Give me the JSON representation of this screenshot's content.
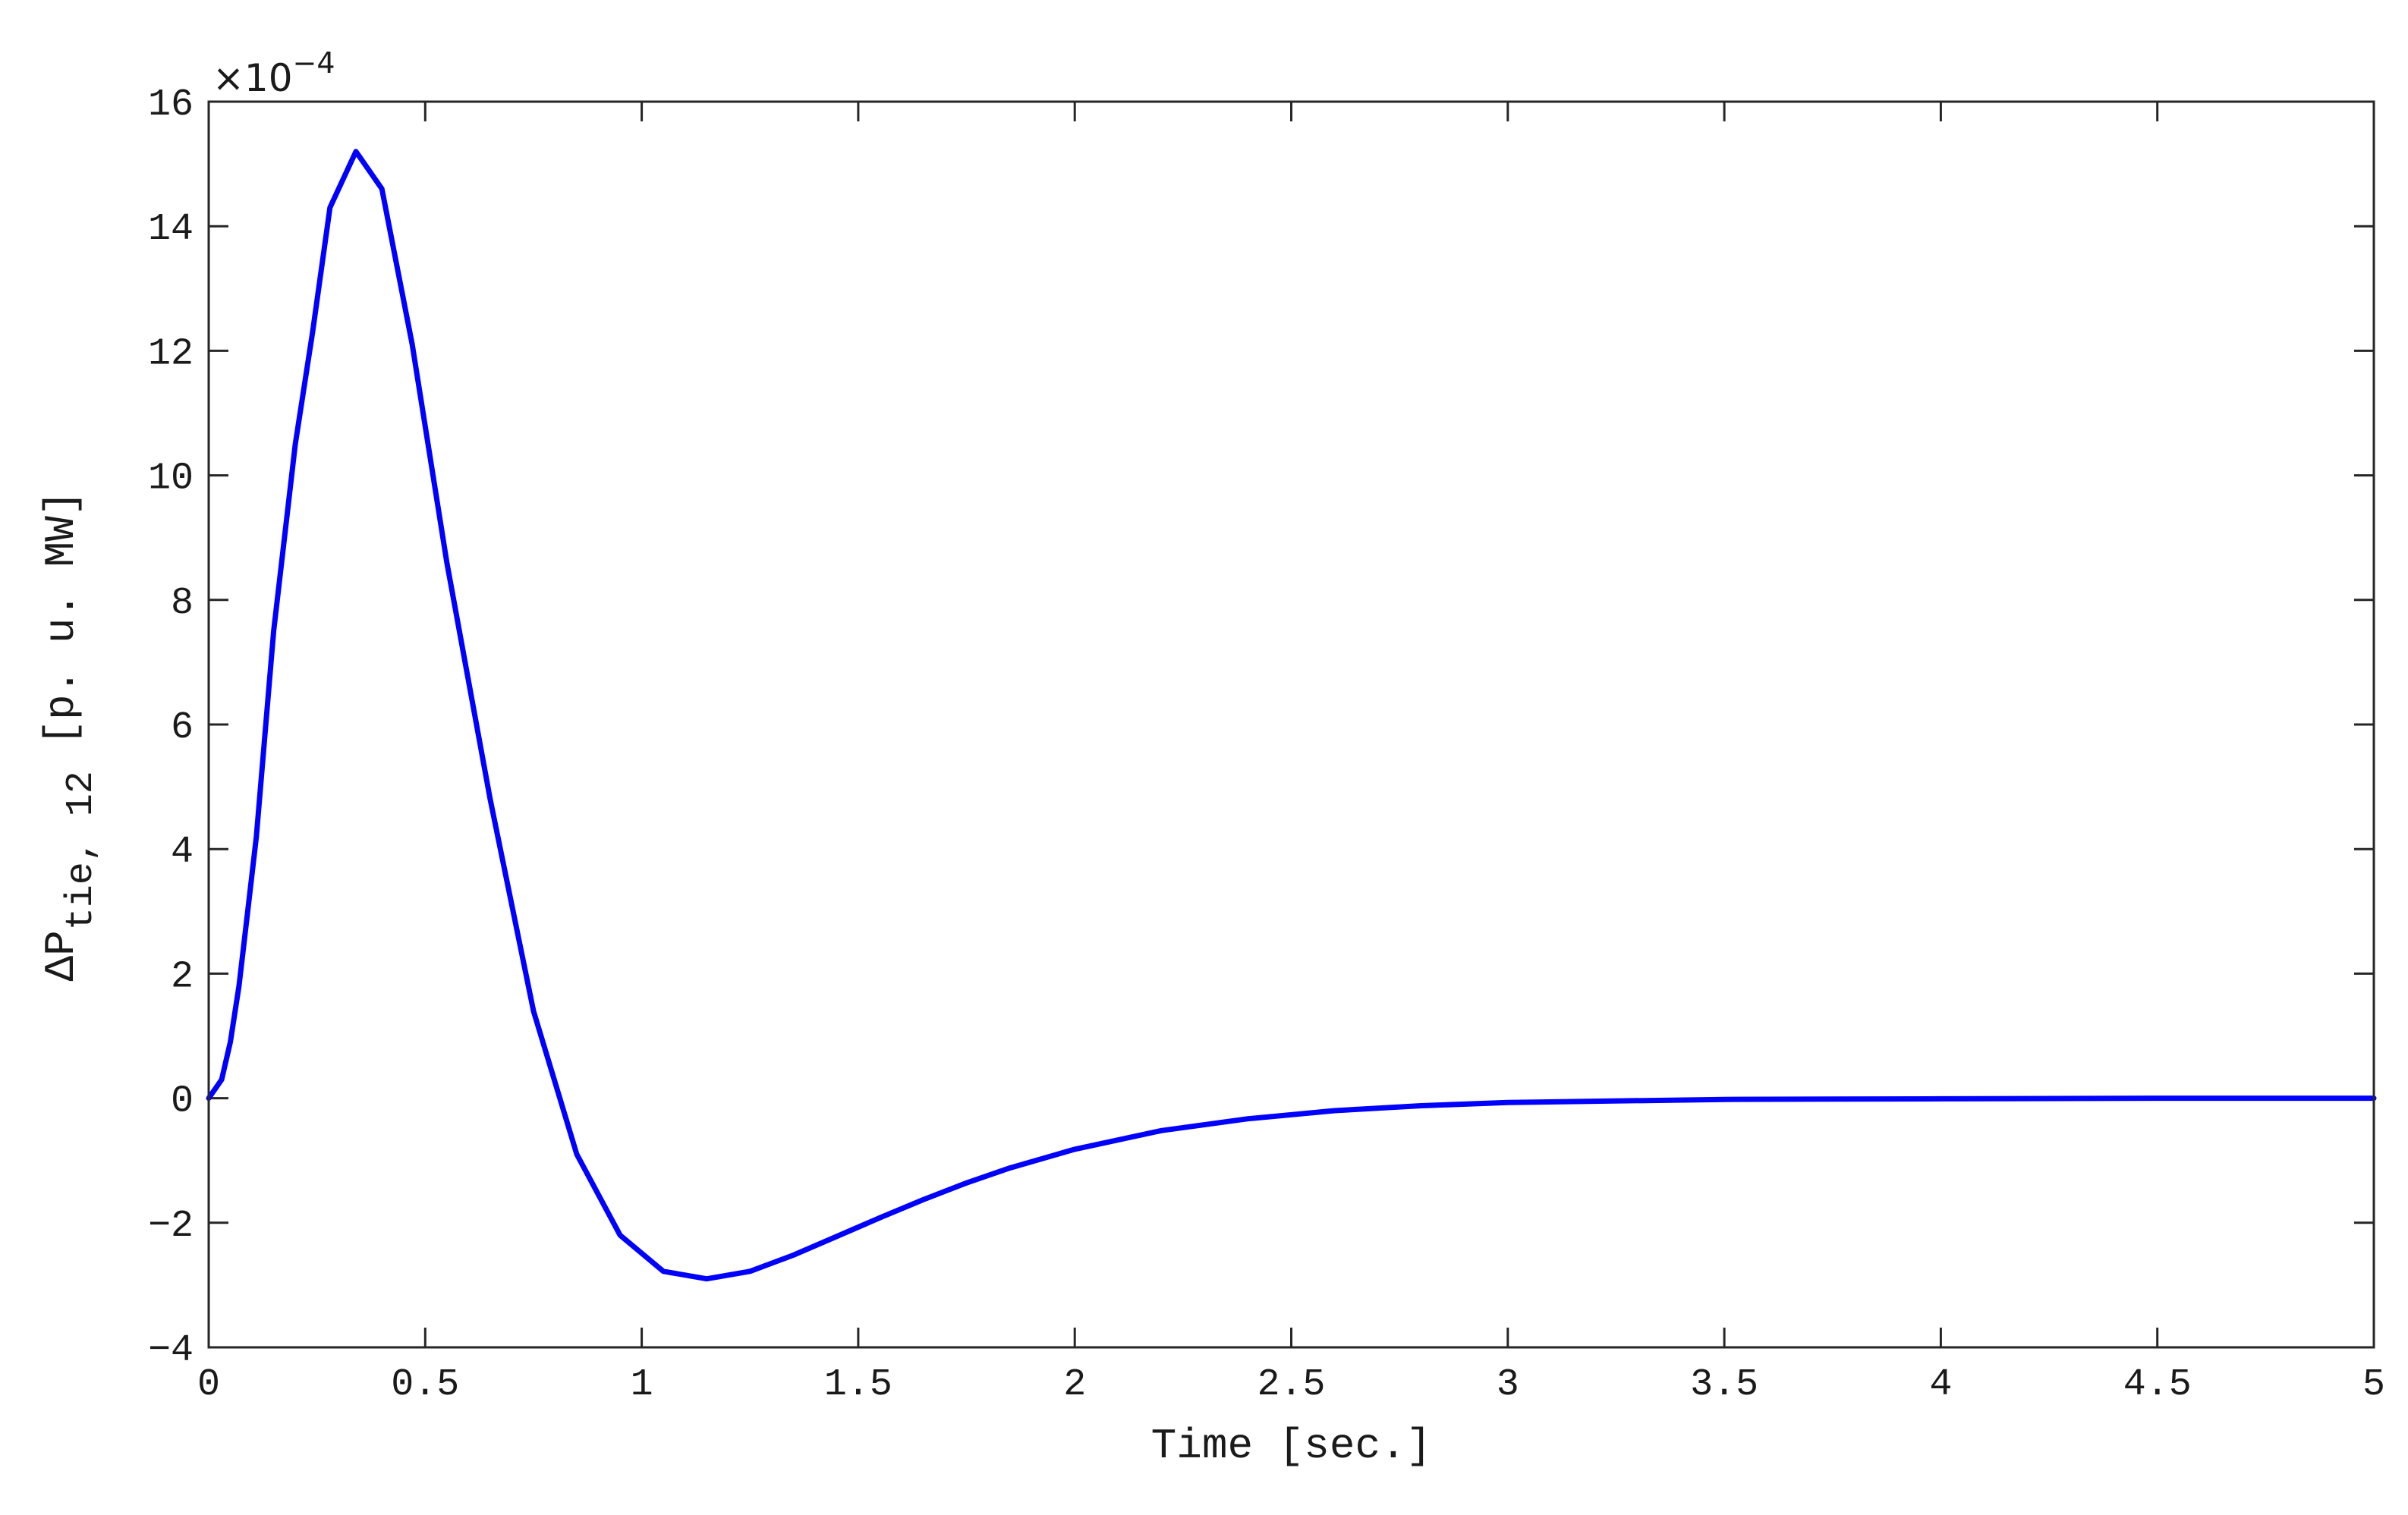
{
  "chart_data": {
    "type": "line",
    "title": "",
    "xlabel": "Time [sec.]",
    "ylabel": {
      "prefix": "ΔP",
      "subscript": "tie, 12",
      "suffix": " [p. u. MW]"
    },
    "y_multiplier": "×10",
    "y_exponent": "−4",
    "xlim": [
      0,
      5
    ],
    "ylim": [
      -4,
      16
    ],
    "x_ticks": [
      "0",
      "0.5",
      "1",
      "1.5",
      "2",
      "2.5",
      "3",
      "3.5",
      "4",
      "4.5",
      "5"
    ],
    "y_ticks": [
      "−4",
      "−2",
      "0",
      "2",
      "4",
      "6",
      "8",
      "10",
      "12",
      "14",
      "16"
    ],
    "grid": false,
    "line_color": "#0000ff",
    "series": [
      {
        "x": [
          0,
          0.03,
          0.05,
          0.07,
          0.09,
          0.11,
          0.15,
          0.2,
          0.24,
          0.28,
          0.34,
          0.4,
          0.47,
          0.55,
          0.65,
          0.75,
          0.85,
          0.95,
          1.05,
          1.15,
          1.25,
          1.35,
          1.45,
          1.55,
          1.65,
          1.75,
          1.85,
          2.0,
          2.2,
          2.4,
          2.6,
          2.8,
          3.0,
          3.5,
          4.0,
          4.5,
          5.0
        ],
        "y": [
          0,
          0.3,
          0.9,
          1.8,
          3.0,
          4.2,
          7.5,
          10.5,
          12.3,
          14.3,
          15.2,
          14.6,
          12.1,
          8.6,
          4.8,
          1.4,
          -0.9,
          -2.2,
          -2.78,
          -2.9,
          -2.78,
          -2.52,
          -2.22,
          -1.92,
          -1.63,
          -1.36,
          -1.12,
          -0.82,
          -0.52,
          -0.33,
          -0.2,
          -0.12,
          -0.07,
          -0.02,
          -0.01,
          0,
          0
        ]
      }
    ]
  }
}
